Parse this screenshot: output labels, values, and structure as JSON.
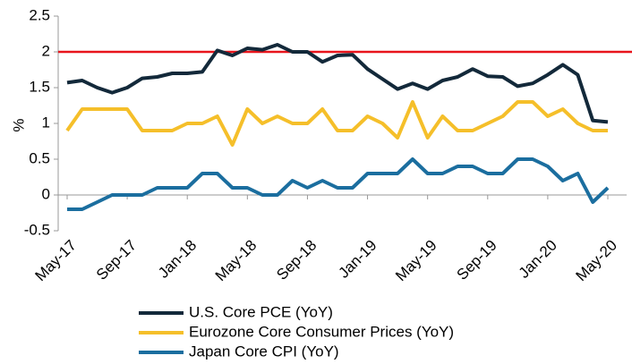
{
  "chart_data": {
    "type": "line",
    "ylabel": "%",
    "categories": [
      "May-17",
      null,
      null,
      null,
      "Sep-17",
      null,
      null,
      null,
      "Jan-18",
      null,
      null,
      null,
      "May-18",
      null,
      null,
      null,
      "Sep-18",
      null,
      null,
      null,
      "Jan-19",
      null,
      null,
      null,
      "May-19",
      null,
      null,
      null,
      "Sep-19",
      null,
      null,
      null,
      "Jan-20",
      null,
      null,
      null,
      "May-20"
    ],
    "series": [
      {
        "name": "U.S. Core PCE (YoY)",
        "color": "#13293a",
        "values": [
          1.57,
          1.6,
          1.5,
          1.43,
          1.5,
          1.63,
          1.65,
          1.7,
          1.7,
          1.72,
          2.02,
          1.95,
          2.05,
          2.03,
          2.1,
          2.0,
          2.0,
          1.86,
          1.95,
          1.96,
          1.76,
          1.62,
          1.48,
          1.56,
          1.48,
          1.6,
          1.65,
          1.76,
          1.66,
          1.65,
          1.52,
          1.56,
          1.68,
          1.82,
          1.68,
          1.04,
          1.02
        ]
      },
      {
        "name": "Eurozone Core Consumer Prices (YoY)",
        "color": "#f5bf2a",
        "values": [
          0.9,
          1.2,
          1.2,
          1.2,
          1.2,
          0.9,
          0.9,
          0.9,
          1.0,
          1.0,
          1.1,
          0.7,
          1.2,
          1.0,
          1.1,
          1.0,
          1.0,
          1.2,
          0.9,
          0.9,
          1.1,
          1.0,
          0.8,
          1.3,
          0.8,
          1.1,
          0.9,
          0.9,
          1.0,
          1.1,
          1.3,
          1.3,
          1.1,
          1.2,
          1.0,
          0.9,
          0.9
        ]
      },
      {
        "name": "Japan Core CPI (YoY)",
        "color": "#1b6e9f",
        "values": [
          -0.2,
          -0.2,
          -0.1,
          0,
          0,
          0,
          0.1,
          0.1,
          0.1,
          0.3,
          0.3,
          0.1,
          0.1,
          0,
          0,
          0.2,
          0.1,
          0.2,
          0.1,
          0.1,
          0.3,
          0.3,
          0.3,
          0.5,
          0.3,
          0.3,
          0.4,
          0.4,
          0.3,
          0.3,
          0.5,
          0.5,
          0.4,
          0.2,
          0.3,
          -0.1,
          0.1
        ]
      }
    ],
    "reference_line": {
      "value": 2,
      "color": "#e8141b"
    },
    "ylim": [
      -0.5,
      2.5
    ],
    "yticks": [
      2.5,
      2,
      1.5,
      1,
      0.5,
      0,
      -0.5
    ],
    "legend": "bottom"
  }
}
